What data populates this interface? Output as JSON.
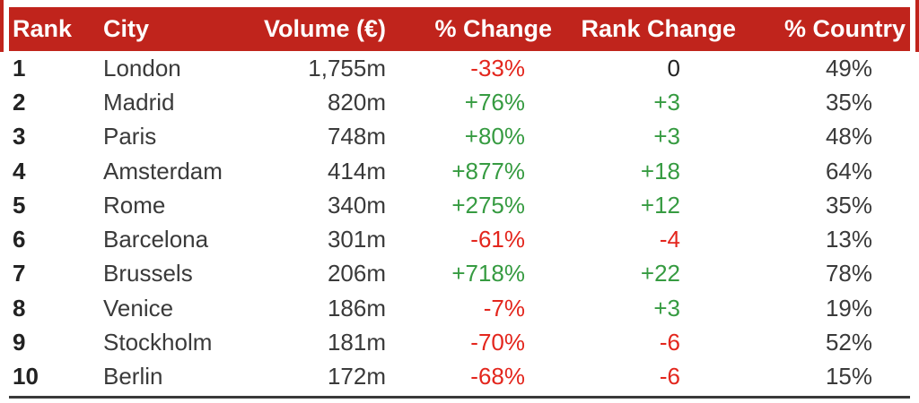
{
  "colors": {
    "header_bg": "#C0241C",
    "positive_text": "#369B41",
    "negative_text": "#E3261D",
    "neutral_text": "#222222",
    "body_text": "#3A3A3A",
    "bottom_rule": "#3A3A3A"
  },
  "table": {
    "columns": [
      {
        "key": "rank",
        "label": "Rank"
      },
      {
        "key": "city",
        "label": "City"
      },
      {
        "key": "volume",
        "label": "Volume (€)"
      },
      {
        "key": "pct_change",
        "label": "% Change"
      },
      {
        "key": "rank_change",
        "label": "Rank Change"
      },
      {
        "key": "pct_country",
        "label": "% Country"
      }
    ],
    "rows": [
      {
        "rank": "1",
        "city": "London",
        "volume": "1,755m",
        "pct_change": {
          "text": "-33%",
          "tone": "negative"
        },
        "rank_change": {
          "text": "0",
          "tone": "neutral"
        },
        "pct_country": "49%"
      },
      {
        "rank": "2",
        "city": "Madrid",
        "volume": "820m",
        "pct_change": {
          "text": "+76%",
          "tone": "positive"
        },
        "rank_change": {
          "text": "+3",
          "tone": "positive"
        },
        "pct_country": "35%"
      },
      {
        "rank": "3",
        "city": "Paris",
        "volume": "748m",
        "pct_change": {
          "text": "+80%",
          "tone": "positive"
        },
        "rank_change": {
          "text": "+3",
          "tone": "positive"
        },
        "pct_country": "48%"
      },
      {
        "rank": "4",
        "city": "Amsterdam",
        "volume": "414m",
        "pct_change": {
          "text": "+877%",
          "tone": "positive"
        },
        "rank_change": {
          "text": "+18",
          "tone": "positive"
        },
        "pct_country": "64%"
      },
      {
        "rank": "5",
        "city": "Rome",
        "volume": "340m",
        "pct_change": {
          "text": "+275%",
          "tone": "positive"
        },
        "rank_change": {
          "text": "+12",
          "tone": "positive"
        },
        "pct_country": "35%"
      },
      {
        "rank": "6",
        "city": "Barcelona",
        "volume": "301m",
        "pct_change": {
          "text": "-61%",
          "tone": "negative"
        },
        "rank_change": {
          "text": "-4",
          "tone": "negative"
        },
        "pct_country": "13%"
      },
      {
        "rank": "7",
        "city": "Brussels",
        "volume": "206m",
        "pct_change": {
          "text": "+718%",
          "tone": "positive"
        },
        "rank_change": {
          "text": "+22",
          "tone": "positive"
        },
        "pct_country": "78%"
      },
      {
        "rank": "8",
        "city": "Venice",
        "volume": "186m",
        "pct_change": {
          "text": "-7%",
          "tone": "negative"
        },
        "rank_change": {
          "text": "+3",
          "tone": "positive"
        },
        "pct_country": "19%"
      },
      {
        "rank": "9",
        "city": "Stockholm",
        "volume": "181m",
        "pct_change": {
          "text": "-70%",
          "tone": "negative"
        },
        "rank_change": {
          "text": "-6",
          "tone": "negative"
        },
        "pct_country": "52%"
      },
      {
        "rank": "10",
        "city": "Berlin",
        "volume": "172m",
        "pct_change": {
          "text": "-68%",
          "tone": "negative"
        },
        "rank_change": {
          "text": "-6",
          "tone": "negative"
        },
        "pct_country": "15%"
      }
    ]
  },
  "chart_data": {
    "type": "table",
    "title": "",
    "columns": [
      "Rank",
      "City",
      "Volume (€)",
      "% Change",
      "Rank Change",
      "% Country"
    ],
    "rows": [
      [
        1,
        "London",
        "1,755m",
        "-33%",
        "0",
        "49%"
      ],
      [
        2,
        "Madrid",
        "820m",
        "+76%",
        "+3",
        "35%"
      ],
      [
        3,
        "Paris",
        "748m",
        "+80%",
        "+3",
        "48%"
      ],
      [
        4,
        "Amsterdam",
        "414m",
        "+877%",
        "+18",
        "64%"
      ],
      [
        5,
        "Rome",
        "340m",
        "+275%",
        "+12",
        "35%"
      ],
      [
        6,
        "Barcelona",
        "301m",
        "-61%",
        "-4",
        "13%"
      ],
      [
        7,
        "Brussels",
        "206m",
        "+718%",
        "+22",
        "78%"
      ],
      [
        8,
        "Venice",
        "186m",
        "-7%",
        "+3",
        "19%"
      ],
      [
        9,
        "Stockholm",
        "181m",
        "-70%",
        "-6",
        "52%"
      ],
      [
        10,
        "Berlin",
        "172m",
        "-68%",
        "-6",
        "15%"
      ]
    ],
    "layout_hints": {
      "header_bg": "#C0241C",
      "header_text_color": "#ffffff",
      "positive_values_color": "#369B41",
      "negative_values_color": "#E3261D",
      "gridlines": "off",
      "bottom_rule": true
    }
  }
}
